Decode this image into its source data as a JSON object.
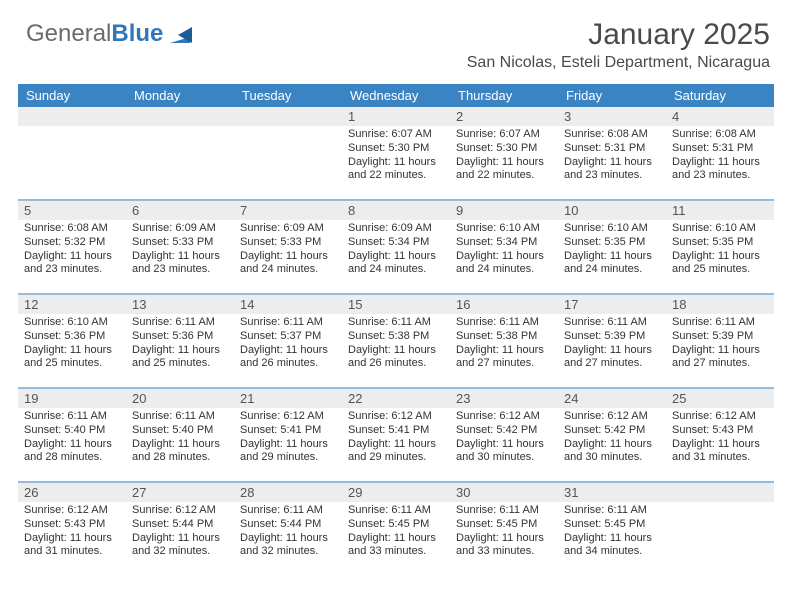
{
  "brand": {
    "part1": "General",
    "part2": "Blue"
  },
  "title": "January 2025",
  "subtitle": "San Nicolas, Esteli Department, Nicaragua",
  "colors": {
    "header_bg": "#3b84c4",
    "header_text": "#ffffff",
    "daynum_bg": "#ededed",
    "text": "#333333",
    "week_sep": "#3b84c4",
    "page_bg": "#ffffff",
    "brand_gray": "#6b6b6b",
    "brand_blue": "#2f79b9"
  },
  "typography": {
    "title_fontsize": 30,
    "subtitle_fontsize": 16,
    "dow_fontsize": 13,
    "daynum_fontsize": 13,
    "body_fontsize": 11
  },
  "dow": [
    "Sunday",
    "Monday",
    "Tuesday",
    "Wednesday",
    "Thursday",
    "Friday",
    "Saturday"
  ],
  "weeks": [
    [
      null,
      null,
      null,
      {
        "n": "1",
        "sr": "Sunrise: 6:07 AM",
        "ss": "Sunset: 5:30 PM",
        "d1": "Daylight: 11 hours",
        "d2": "and 22 minutes."
      },
      {
        "n": "2",
        "sr": "Sunrise: 6:07 AM",
        "ss": "Sunset: 5:30 PM",
        "d1": "Daylight: 11 hours",
        "d2": "and 22 minutes."
      },
      {
        "n": "3",
        "sr": "Sunrise: 6:08 AM",
        "ss": "Sunset: 5:31 PM",
        "d1": "Daylight: 11 hours",
        "d2": "and 23 minutes."
      },
      {
        "n": "4",
        "sr": "Sunrise: 6:08 AM",
        "ss": "Sunset: 5:31 PM",
        "d1": "Daylight: 11 hours",
        "d2": "and 23 minutes."
      }
    ],
    [
      {
        "n": "5",
        "sr": "Sunrise: 6:08 AM",
        "ss": "Sunset: 5:32 PM",
        "d1": "Daylight: 11 hours",
        "d2": "and 23 minutes."
      },
      {
        "n": "6",
        "sr": "Sunrise: 6:09 AM",
        "ss": "Sunset: 5:33 PM",
        "d1": "Daylight: 11 hours",
        "d2": "and 23 minutes."
      },
      {
        "n": "7",
        "sr": "Sunrise: 6:09 AM",
        "ss": "Sunset: 5:33 PM",
        "d1": "Daylight: 11 hours",
        "d2": "and 24 minutes."
      },
      {
        "n": "8",
        "sr": "Sunrise: 6:09 AM",
        "ss": "Sunset: 5:34 PM",
        "d1": "Daylight: 11 hours",
        "d2": "and 24 minutes."
      },
      {
        "n": "9",
        "sr": "Sunrise: 6:10 AM",
        "ss": "Sunset: 5:34 PM",
        "d1": "Daylight: 11 hours",
        "d2": "and 24 minutes."
      },
      {
        "n": "10",
        "sr": "Sunrise: 6:10 AM",
        "ss": "Sunset: 5:35 PM",
        "d1": "Daylight: 11 hours",
        "d2": "and 24 minutes."
      },
      {
        "n": "11",
        "sr": "Sunrise: 6:10 AM",
        "ss": "Sunset: 5:35 PM",
        "d1": "Daylight: 11 hours",
        "d2": "and 25 minutes."
      }
    ],
    [
      {
        "n": "12",
        "sr": "Sunrise: 6:10 AM",
        "ss": "Sunset: 5:36 PM",
        "d1": "Daylight: 11 hours",
        "d2": "and 25 minutes."
      },
      {
        "n": "13",
        "sr": "Sunrise: 6:11 AM",
        "ss": "Sunset: 5:36 PM",
        "d1": "Daylight: 11 hours",
        "d2": "and 25 minutes."
      },
      {
        "n": "14",
        "sr": "Sunrise: 6:11 AM",
        "ss": "Sunset: 5:37 PM",
        "d1": "Daylight: 11 hours",
        "d2": "and 26 minutes."
      },
      {
        "n": "15",
        "sr": "Sunrise: 6:11 AM",
        "ss": "Sunset: 5:38 PM",
        "d1": "Daylight: 11 hours",
        "d2": "and 26 minutes."
      },
      {
        "n": "16",
        "sr": "Sunrise: 6:11 AM",
        "ss": "Sunset: 5:38 PM",
        "d1": "Daylight: 11 hours",
        "d2": "and 27 minutes."
      },
      {
        "n": "17",
        "sr": "Sunrise: 6:11 AM",
        "ss": "Sunset: 5:39 PM",
        "d1": "Daylight: 11 hours",
        "d2": "and 27 minutes."
      },
      {
        "n": "18",
        "sr": "Sunrise: 6:11 AM",
        "ss": "Sunset: 5:39 PM",
        "d1": "Daylight: 11 hours",
        "d2": "and 27 minutes."
      }
    ],
    [
      {
        "n": "19",
        "sr": "Sunrise: 6:11 AM",
        "ss": "Sunset: 5:40 PM",
        "d1": "Daylight: 11 hours",
        "d2": "and 28 minutes."
      },
      {
        "n": "20",
        "sr": "Sunrise: 6:11 AM",
        "ss": "Sunset: 5:40 PM",
        "d1": "Daylight: 11 hours",
        "d2": "and 28 minutes."
      },
      {
        "n": "21",
        "sr": "Sunrise: 6:12 AM",
        "ss": "Sunset: 5:41 PM",
        "d1": "Daylight: 11 hours",
        "d2": "and 29 minutes."
      },
      {
        "n": "22",
        "sr": "Sunrise: 6:12 AM",
        "ss": "Sunset: 5:41 PM",
        "d1": "Daylight: 11 hours",
        "d2": "and 29 minutes."
      },
      {
        "n": "23",
        "sr": "Sunrise: 6:12 AM",
        "ss": "Sunset: 5:42 PM",
        "d1": "Daylight: 11 hours",
        "d2": "and 30 minutes."
      },
      {
        "n": "24",
        "sr": "Sunrise: 6:12 AM",
        "ss": "Sunset: 5:42 PM",
        "d1": "Daylight: 11 hours",
        "d2": "and 30 minutes."
      },
      {
        "n": "25",
        "sr": "Sunrise: 6:12 AM",
        "ss": "Sunset: 5:43 PM",
        "d1": "Daylight: 11 hours",
        "d2": "and 31 minutes."
      }
    ],
    [
      {
        "n": "26",
        "sr": "Sunrise: 6:12 AM",
        "ss": "Sunset: 5:43 PM",
        "d1": "Daylight: 11 hours",
        "d2": "and 31 minutes."
      },
      {
        "n": "27",
        "sr": "Sunrise: 6:12 AM",
        "ss": "Sunset: 5:44 PM",
        "d1": "Daylight: 11 hours",
        "d2": "and 32 minutes."
      },
      {
        "n": "28",
        "sr": "Sunrise: 6:11 AM",
        "ss": "Sunset: 5:44 PM",
        "d1": "Daylight: 11 hours",
        "d2": "and 32 minutes."
      },
      {
        "n": "29",
        "sr": "Sunrise: 6:11 AM",
        "ss": "Sunset: 5:45 PM",
        "d1": "Daylight: 11 hours",
        "d2": "and 33 minutes."
      },
      {
        "n": "30",
        "sr": "Sunrise: 6:11 AM",
        "ss": "Sunset: 5:45 PM",
        "d1": "Daylight: 11 hours",
        "d2": "and 33 minutes."
      },
      {
        "n": "31",
        "sr": "Sunrise: 6:11 AM",
        "ss": "Sunset: 5:45 PM",
        "d1": "Daylight: 11 hours",
        "d2": "and 34 minutes."
      },
      null
    ]
  ]
}
